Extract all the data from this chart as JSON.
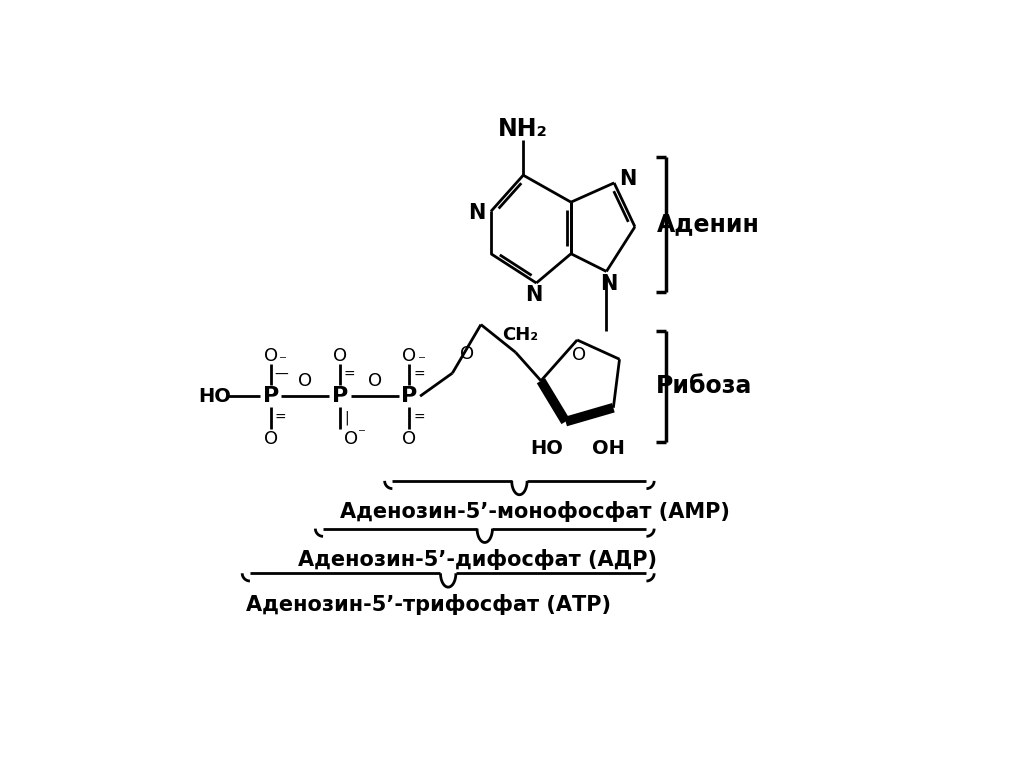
{
  "bg_color": "#ffffff",
  "font_color": "#000000",
  "adenine_label": "Аденин",
  "ribose_label": "Рибоза",
  "amp_label": "Аденозин-5’-монофосфат (АМР)",
  "adp_label": "Аденозин-5’-дифосфат (АДР)",
  "atp_label": "Аденозин-5’-трифосфат (АТР)",
  "nh2_label": "NH₂",
  "ch2_label": "CH₂",
  "figsize": [
    10.24,
    7.67
  ],
  "dpi": 100
}
